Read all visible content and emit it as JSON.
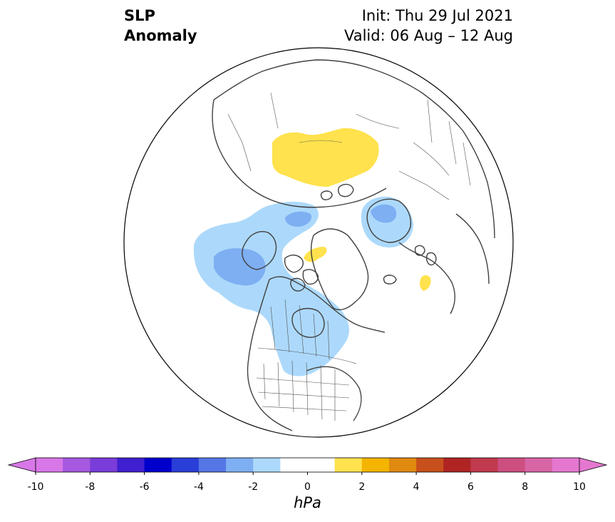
{
  "title": {
    "line1": "SLP",
    "line2": "Anomaly"
  },
  "init": {
    "line1": "Init: Thu 29 Jul 2021",
    "line2": "Valid: 06 Aug – 12 Aug"
  },
  "colorbar": {
    "unit": "hPa",
    "min": -10,
    "max": 10,
    "step": 1,
    "tick_labels": [
      "-10",
      "-8",
      "-6",
      "-4",
      "-2",
      "0",
      "2",
      "4",
      "6",
      "8",
      "10"
    ],
    "tick_values": [
      -10,
      -8,
      -6,
      -4,
      -2,
      0,
      2,
      4,
      6,
      8,
      10
    ],
    "extend": "both",
    "colors": [
      "#d877e8",
      "#a659e0",
      "#7a3dd9",
      "#3f1fd0",
      "#0000cc",
      "#2a3ed8",
      "#5576e6",
      "#7eaff2",
      "#acd9fb",
      "#ffffff",
      "#ffffff",
      "#ffe24d",
      "#f4b400",
      "#e08a10",
      "#c8501c",
      "#b02424",
      "#c23a4e",
      "#cc4f80",
      "#d865a6",
      "#e478d0"
    ],
    "under_color": "#d877e8",
    "over_color": "#e478d0"
  },
  "map": {
    "projection": "north-polar-stereographic",
    "ocean_color": "#ffffff",
    "coastline_color": "#404040",
    "anomaly_colors": {
      "neg_1_2": "#acd9fb",
      "neg_2_3": "#7eaff2",
      "pos_1_2": "#ffe24d"
    }
  }
}
